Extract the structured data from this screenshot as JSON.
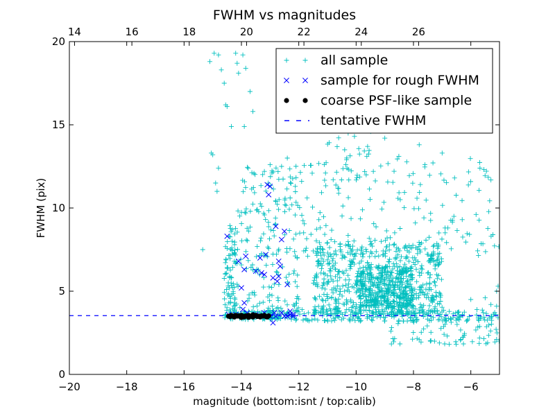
{
  "chart_data": {
    "type": "scatter",
    "title": "FWHM vs magnitudes",
    "xlabel": "magnitude (bottom:isnt / top:calib)",
    "ylabel": "FWHM (pix)",
    "xlim": [
      -20,
      -5
    ],
    "ylim": [
      0,
      20
    ],
    "xticks": [
      "−20",
      "−18",
      "−16",
      "−14",
      "−12",
      "−10",
      "−8",
      "−6"
    ],
    "xtick_values": [
      -20,
      -18,
      -16,
      -14,
      -12,
      -10,
      -8,
      -6
    ],
    "yticks": [
      "0",
      "5",
      "10",
      "15",
      "20"
    ],
    "ytick_values": [
      0,
      5,
      10,
      15,
      20
    ],
    "top_axis": {
      "tick_labels": [
        "14",
        "16",
        "18",
        "20",
        "22",
        "24",
        "26"
      ],
      "tick_values": [
        14,
        16,
        18,
        20,
        22,
        24,
        26
      ],
      "offset": 33.82
    },
    "grid": false,
    "legend_position": "top-right",
    "colors": {
      "all_sample": "#00bfbf",
      "rough": "#0000ff",
      "coarse": "#000000",
      "tentative": "#0000ff"
    },
    "series": [
      {
        "name": "all sample",
        "marker": "plus",
        "color": "#00bfbf",
        "generated": true,
        "clusters": [
          {
            "x_range": [
              -14.6,
              -12.2
            ],
            "y_range": [
              3.3,
              3.8
            ],
            "count": 120
          },
          {
            "x_range": [
              -12.2,
              -5
            ],
            "y_range": [
              3.2,
              3.9
            ],
            "count": 170
          },
          {
            "x_range": [
              -14.6,
              -14.2
            ],
            "y_range": [
              3.8,
              9.0
            ],
            "count": 80
          },
          {
            "x_range": [
              -11.5,
              -7.0
            ],
            "y_range": [
              3.6,
              8.0
            ],
            "count": 600
          },
          {
            "x_range": [
              -10.0,
              -8.0
            ],
            "y_range": [
              4.0,
              6.5
            ],
            "count": 350
          },
          {
            "x_range": [
              -14.2,
              -12.0
            ],
            "y_range": [
              3.8,
              12.5
            ],
            "count": 180
          },
          {
            "x_range": [
              -12.5,
              -5.0
            ],
            "y_range": [
              7.0,
              13.0
            ],
            "count": 200
          },
          {
            "x_range": [
              -11.0,
              -8.5
            ],
            "y_range": [
              13.0,
              17.5
            ],
            "count": 40
          },
          {
            "x_range": [
              -9.0,
              -5.0
            ],
            "y_range": [
              1.8,
              3.4
            ],
            "count": 70
          }
        ],
        "points": [
          [
            -15.1,
            18.8
          ],
          [
            -14.95,
            19.3
          ],
          [
            -14.8,
            19.2
          ],
          [
            -14.7,
            18.3
          ],
          [
            -14.6,
            17.5
          ],
          [
            -14.55,
            16.2
          ],
          [
            -14.5,
            16.1
          ],
          [
            -14.35,
            14.9
          ],
          [
            -14.2,
            19.3
          ],
          [
            -14.15,
            18.7
          ],
          [
            -14.1,
            18.1
          ],
          [
            -13.95,
            19.2
          ],
          [
            -13.85,
            18.4
          ],
          [
            -13.9,
            14.9
          ],
          [
            -13.7,
            17.0
          ],
          [
            -13.6,
            15.8
          ],
          [
            -15.35,
            7.5
          ],
          [
            -15.05,
            13.3
          ],
          [
            -15.0,
            13.2
          ],
          [
            -14.8,
            12.4
          ],
          [
            -14.9,
            11.5
          ],
          [
            -14.85,
            11.0
          ],
          [
            -13.2,
            12.2
          ],
          [
            -13.0,
            12.6
          ],
          [
            -12.8,
            10.4
          ],
          [
            -12.6,
            12.5
          ],
          [
            -12.4,
            13.0
          ],
          [
            -11.3,
            9.3
          ],
          [
            -10.8,
            11.7
          ],
          [
            -11.9,
            11.6
          ],
          [
            -10.2,
            14.8
          ],
          [
            -10.4,
            13.5
          ],
          [
            -9.6,
            13.7
          ],
          [
            -9.4,
            12.2
          ],
          [
            -9.2,
            15.2
          ],
          [
            -9.0,
            14.2
          ],
          [
            -8.0,
            15.3
          ],
          [
            -7.8,
            13.8
          ],
          [
            -7.6,
            12.6
          ],
          [
            -7.0,
            13.3
          ],
          [
            -6.3,
            9.3
          ],
          [
            -6.8,
            8.8
          ],
          [
            -6.9,
            8.8
          ],
          [
            -5.5,
            4.6
          ],
          [
            -5.1,
            5.0
          ],
          [
            -5.05,
            5.3
          ],
          [
            -5.1,
            4.1
          ],
          [
            -5.3,
            4.2
          ],
          [
            -6.0,
            4.5
          ]
        ]
      },
      {
        "name": "sample for rough FWHM",
        "marker": "x",
        "color": "#0000ff",
        "points": [
          [
            -14.5,
            8.3
          ],
          [
            -14.1,
            6.8
          ],
          [
            -13.9,
            6.3
          ],
          [
            -13.85,
            7.1
          ],
          [
            -14.0,
            5.2
          ],
          [
            -13.9,
            4.3
          ],
          [
            -13.95,
            3.9
          ],
          [
            -13.5,
            6.2
          ],
          [
            -13.3,
            6.1
          ],
          [
            -13.2,
            6.0
          ],
          [
            -13.35,
            7.0
          ],
          [
            -13.15,
            7.2
          ],
          [
            -13.1,
            11.4
          ],
          [
            -13.05,
            10.8
          ],
          [
            -13.0,
            11.3
          ],
          [
            -12.9,
            5.8
          ],
          [
            -12.75,
            5.6
          ],
          [
            -12.7,
            6.8
          ],
          [
            -12.65,
            6.5
          ],
          [
            -12.6,
            8.1
          ],
          [
            -12.8,
            8.9
          ],
          [
            -12.7,
            5.9
          ],
          [
            -12.5,
            8.6
          ],
          [
            -12.4,
            5.4
          ],
          [
            -12.3,
            3.8
          ],
          [
            -12.9,
            3.1
          ],
          [
            -12.85,
            3.7
          ],
          [
            -12.6,
            3.7
          ],
          [
            -13.2,
            3.7
          ],
          [
            -13.5,
            3.6
          ],
          [
            -13.8,
            3.7
          ],
          [
            -14.2,
            3.6
          ],
          [
            -14.45,
            3.6
          ],
          [
            -12.5,
            3.5
          ],
          [
            -12.4,
            3.5
          ],
          [
            -12.2,
            3.5
          ],
          [
            -12.3,
            3.6
          ],
          [
            -12.8,
            3.5
          ],
          [
            -13.0,
            3.5
          ],
          [
            -12.2,
            3.6
          ]
        ]
      },
      {
        "name": "coarse PSF-like sample",
        "marker": "circle",
        "color": "#000000",
        "points": [
          [
            -14.45,
            3.5
          ],
          [
            -14.35,
            3.55
          ],
          [
            -14.3,
            3.5
          ],
          [
            -14.25,
            3.45
          ],
          [
            -14.2,
            3.55
          ],
          [
            -14.15,
            3.5
          ],
          [
            -14.1,
            3.52
          ],
          [
            -14.05,
            3.48
          ],
          [
            -14.0,
            3.55
          ],
          [
            -13.95,
            3.5
          ],
          [
            -13.9,
            3.45
          ],
          [
            -13.85,
            3.52
          ],
          [
            -13.8,
            3.5
          ],
          [
            -13.75,
            3.55
          ],
          [
            -13.7,
            3.48
          ],
          [
            -13.65,
            3.5
          ],
          [
            -13.6,
            3.45
          ],
          [
            -13.55,
            3.52
          ],
          [
            -13.5,
            3.55
          ],
          [
            -13.45,
            3.48
          ],
          [
            -13.4,
            3.5
          ],
          [
            -13.35,
            3.45
          ],
          [
            -13.3,
            3.52
          ],
          [
            -13.25,
            3.5
          ],
          [
            -13.2,
            3.55
          ],
          [
            -13.15,
            3.48
          ],
          [
            -13.1,
            3.45
          ],
          [
            -13.05,
            3.52
          ],
          [
            -14.4,
            3.47
          ],
          [
            -14.0,
            3.42
          ],
          [
            -13.6,
            3.58
          ],
          [
            -13.75,
            3.43
          ]
        ]
      },
      {
        "name": "tentative FWHM",
        "type": "hline",
        "style": "dashed",
        "color": "#0000ff",
        "y": 3.53
      }
    ]
  }
}
